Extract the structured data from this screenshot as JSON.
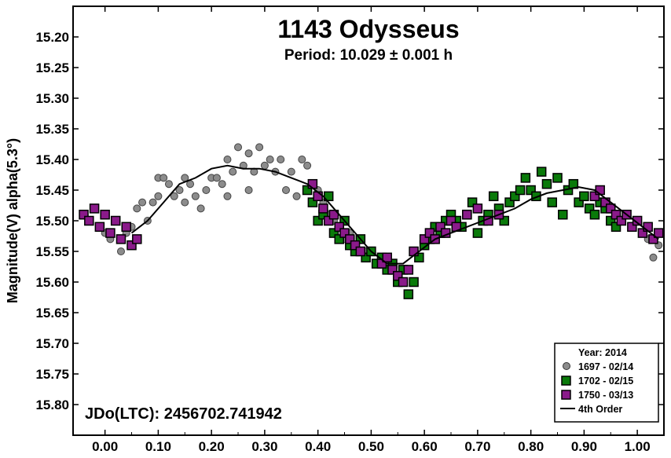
{
  "chart_data": {
    "type": "scatter",
    "title": "1143 Odysseus",
    "subtitle": "Period: 10.029 ± 0.001 h",
    "xlabel": "",
    "ylabel": "Magnitude(V) alpha(5.3°)",
    "xlim": [
      -0.06,
      1.05
    ],
    "ylim": [
      15.15,
      15.85
    ],
    "y_inverted": true,
    "grid": false,
    "x_ticks": [
      0.0,
      0.1,
      0.2,
      0.3,
      0.4,
      0.5,
      0.6,
      0.7,
      0.8,
      0.9,
      1.0
    ],
    "x_tick_labels": [
      "0.00",
      "0.10",
      "0.20",
      "0.30",
      "0.40",
      "0.50",
      "0.60",
      "0.70",
      "0.80",
      "0.90",
      "1.00"
    ],
    "y_ticks": [
      15.2,
      15.25,
      15.3,
      15.35,
      15.4,
      15.45,
      15.5,
      15.55,
      15.6,
      15.65,
      15.7,
      15.75,
      15.8
    ],
    "y_tick_labels": [
      "15.20",
      "15.25",
      "15.30",
      "15.35",
      "15.40",
      "15.45",
      "15.50",
      "15.55",
      "15.60",
      "15.65",
      "15.70",
      "15.75",
      "15.80"
    ],
    "annotation": "JDo(LTC): 2456702.741942",
    "legend": {
      "title": "Year: 2014",
      "position": "bottom-right",
      "entries": [
        "1697 - 02/14",
        "1702 - 02/15",
        "1750 - 03/13",
        "4th Order"
      ]
    },
    "series": [
      {
        "name": "1697 - 02/14",
        "marker": "circle",
        "color": "#8c8c8c",
        "points": [
          [
            0.0,
            15.52
          ],
          [
            0.01,
            15.53
          ],
          [
            0.02,
            15.5
          ],
          [
            0.03,
            15.55
          ],
          [
            0.04,
            15.52
          ],
          [
            0.05,
            15.51
          ],
          [
            0.06,
            15.48
          ],
          [
            0.07,
            15.47
          ],
          [
            0.08,
            15.5
          ],
          [
            0.09,
            15.47
          ],
          [
            0.1,
            15.46
          ],
          [
            0.1,
            15.43
          ],
          [
            0.11,
            15.43
          ],
          [
            0.12,
            15.44
          ],
          [
            0.13,
            15.46
          ],
          [
            0.14,
            15.45
          ],
          [
            0.15,
            15.47
          ],
          [
            0.15,
            15.43
          ],
          [
            0.16,
            15.44
          ],
          [
            0.17,
            15.46
          ],
          [
            0.18,
            15.48
          ],
          [
            0.19,
            15.45
          ],
          [
            0.2,
            15.43
          ],
          [
            0.21,
            15.43
          ],
          [
            0.22,
            15.44
          ],
          [
            0.23,
            15.46
          ],
          [
            0.23,
            15.4
          ],
          [
            0.24,
            15.42
          ],
          [
            0.25,
            15.38
          ],
          [
            0.26,
            15.41
          ],
          [
            0.27,
            15.39
          ],
          [
            0.27,
            15.45
          ],
          [
            0.28,
            15.42
          ],
          [
            0.29,
            15.38
          ],
          [
            0.3,
            15.41
          ],
          [
            0.31,
            15.4
          ],
          [
            0.32,
            15.42
          ],
          [
            0.33,
            15.4
          ],
          [
            0.34,
            15.45
          ],
          [
            0.35,
            15.42
          ],
          [
            0.36,
            15.46
          ],
          [
            0.37,
            15.4
          ],
          [
            0.38,
            15.41
          ],
          [
            0.39,
            15.44
          ],
          [
            0.4,
            15.45
          ],
          [
            0.41,
            15.47
          ],
          [
            0.42,
            15.49
          ],
          [
            0.43,
            15.5
          ],
          [
            0.44,
            15.51
          ],
          [
            0.45,
            15.53
          ],
          [
            0.46,
            15.52
          ],
          [
            0.47,
            15.54
          ],
          [
            0.48,
            15.55
          ],
          [
            0.49,
            15.55
          ],
          [
            1.0,
            15.5
          ],
          [
            1.01,
            15.52
          ],
          [
            1.02,
            15.53
          ],
          [
            1.03,
            15.56
          ],
          [
            1.04,
            15.54
          ]
        ]
      },
      {
        "name": "1702 - 02/15",
        "marker": "square",
        "color": "#0a7a0a",
        "points": [
          [
            0.38,
            15.45
          ],
          [
            0.39,
            15.47
          ],
          [
            0.4,
            15.5
          ],
          [
            0.41,
            15.49
          ],
          [
            0.42,
            15.46
          ],
          [
            0.43,
            15.52
          ],
          [
            0.44,
            15.53
          ],
          [
            0.45,
            15.5
          ],
          [
            0.46,
            15.54
          ],
          [
            0.47,
            15.55
          ],
          [
            0.48,
            15.53
          ],
          [
            0.49,
            15.56
          ],
          [
            0.5,
            15.55
          ],
          [
            0.51,
            15.57
          ],
          [
            0.52,
            15.56
          ],
          [
            0.53,
            15.58
          ],
          [
            0.54,
            15.57
          ],
          [
            0.55,
            15.6
          ],
          [
            0.56,
            15.58
          ],
          [
            0.57,
            15.62
          ],
          [
            0.58,
            15.6
          ],
          [
            0.59,
            15.56
          ],
          [
            0.6,
            15.54
          ],
          [
            0.61,
            15.53
          ],
          [
            0.62,
            15.51
          ],
          [
            0.63,
            15.52
          ],
          [
            0.64,
            15.5
          ],
          [
            0.65,
            15.49
          ],
          [
            0.66,
            15.5
          ],
          [
            0.67,
            15.51
          ],
          [
            0.68,
            15.49
          ],
          [
            0.69,
            15.47
          ],
          [
            0.7,
            15.52
          ],
          [
            0.71,
            15.5
          ],
          [
            0.72,
            15.49
          ],
          [
            0.73,
            15.46
          ],
          [
            0.74,
            15.48
          ],
          [
            0.75,
            15.5
          ],
          [
            0.76,
            15.47
          ],
          [
            0.77,
            15.46
          ],
          [
            0.78,
            15.45
          ],
          [
            0.79,
            15.43
          ],
          [
            0.8,
            15.45
          ],
          [
            0.81,
            15.46
          ],
          [
            0.82,
            15.42
          ],
          [
            0.83,
            15.44
          ],
          [
            0.84,
            15.47
          ],
          [
            0.85,
            15.43
          ],
          [
            0.86,
            15.49
          ],
          [
            0.87,
            15.45
          ],
          [
            0.88,
            15.44
          ],
          [
            0.89,
            15.47
          ],
          [
            0.9,
            15.46
          ],
          [
            0.91,
            15.48
          ],
          [
            0.92,
            15.49
          ],
          [
            0.93,
            15.47
          ],
          [
            0.94,
            15.48
          ],
          [
            0.95,
            15.5
          ],
          [
            0.96,
            15.51
          ]
        ]
      },
      {
        "name": "1750 - 03/13",
        "marker": "square",
        "color": "#8a1a8a",
        "points": [
          [
            -0.04,
            15.49
          ],
          [
            -0.03,
            15.5
          ],
          [
            -0.02,
            15.48
          ],
          [
            -0.01,
            15.51
          ],
          [
            0.0,
            15.49
          ],
          [
            0.01,
            15.52
          ],
          [
            0.02,
            15.5
          ],
          [
            0.03,
            15.53
          ],
          [
            0.04,
            15.51
          ],
          [
            0.05,
            15.54
          ],
          [
            0.06,
            15.53
          ],
          [
            0.39,
            15.44
          ],
          [
            0.4,
            15.46
          ],
          [
            0.41,
            15.48
          ],
          [
            0.42,
            15.5
          ],
          [
            0.43,
            15.49
          ],
          [
            0.44,
            15.51
          ],
          [
            0.45,
            15.52
          ],
          [
            0.46,
            15.53
          ],
          [
            0.47,
            15.54
          ],
          [
            0.48,
            15.55
          ],
          [
            0.52,
            15.57
          ],
          [
            0.53,
            15.56
          ],
          [
            0.54,
            15.58
          ],
          [
            0.55,
            15.59
          ],
          [
            0.56,
            15.6
          ],
          [
            0.57,
            15.58
          ],
          [
            0.58,
            15.55
          ],
          [
            0.6,
            15.53
          ],
          [
            0.61,
            15.52
          ],
          [
            0.62,
            15.53
          ],
          [
            0.63,
            15.51
          ],
          [
            0.64,
            15.52
          ],
          [
            0.65,
            15.5
          ],
          [
            0.66,
            15.51
          ],
          [
            0.68,
            15.49
          ],
          [
            0.7,
            15.48
          ],
          [
            0.72,
            15.5
          ],
          [
            0.74,
            15.49
          ],
          [
            0.92,
            15.46
          ],
          [
            0.93,
            15.45
          ],
          [
            0.94,
            15.47
          ],
          [
            0.95,
            15.48
          ],
          [
            0.96,
            15.49
          ],
          [
            0.97,
            15.5
          ],
          [
            0.98,
            15.49
          ],
          [
            0.99,
            15.51
          ],
          [
            1.0,
            15.5
          ],
          [
            1.01,
            15.52
          ],
          [
            1.02,
            15.51
          ],
          [
            1.03,
            15.53
          ],
          [
            1.04,
            15.52
          ]
        ]
      }
    ],
    "fit": {
      "name": "4th Order",
      "color": "#000000",
      "points": [
        [
          0.05,
          15.52
        ],
        [
          0.08,
          15.5
        ],
        [
          0.11,
          15.47
        ],
        [
          0.14,
          15.44
        ],
        [
          0.17,
          15.43
        ],
        [
          0.2,
          15.415
        ],
        [
          0.23,
          15.41
        ],
        [
          0.26,
          15.415
        ],
        [
          0.29,
          15.415
        ],
        [
          0.32,
          15.42
        ],
        [
          0.35,
          15.43
        ],
        [
          0.38,
          15.44
        ],
        [
          0.41,
          15.46
        ],
        [
          0.44,
          15.49
        ],
        [
          0.47,
          15.52
        ],
        [
          0.5,
          15.55
        ],
        [
          0.53,
          15.57
        ],
        [
          0.56,
          15.57
        ],
        [
          0.59,
          15.55
        ],
        [
          0.62,
          15.53
        ],
        [
          0.65,
          15.52
        ],
        [
          0.68,
          15.51
        ],
        [
          0.71,
          15.5
        ],
        [
          0.74,
          15.49
        ],
        [
          0.77,
          15.48
        ],
        [
          0.8,
          15.465
        ],
        [
          0.83,
          15.455
        ],
        [
          0.86,
          15.45
        ],
        [
          0.89,
          15.445
        ],
        [
          0.92,
          15.45
        ],
        [
          0.95,
          15.47
        ],
        [
          0.98,
          15.49
        ],
        [
          1.01,
          15.51
        ],
        [
          1.04,
          15.53
        ]
      ]
    }
  }
}
